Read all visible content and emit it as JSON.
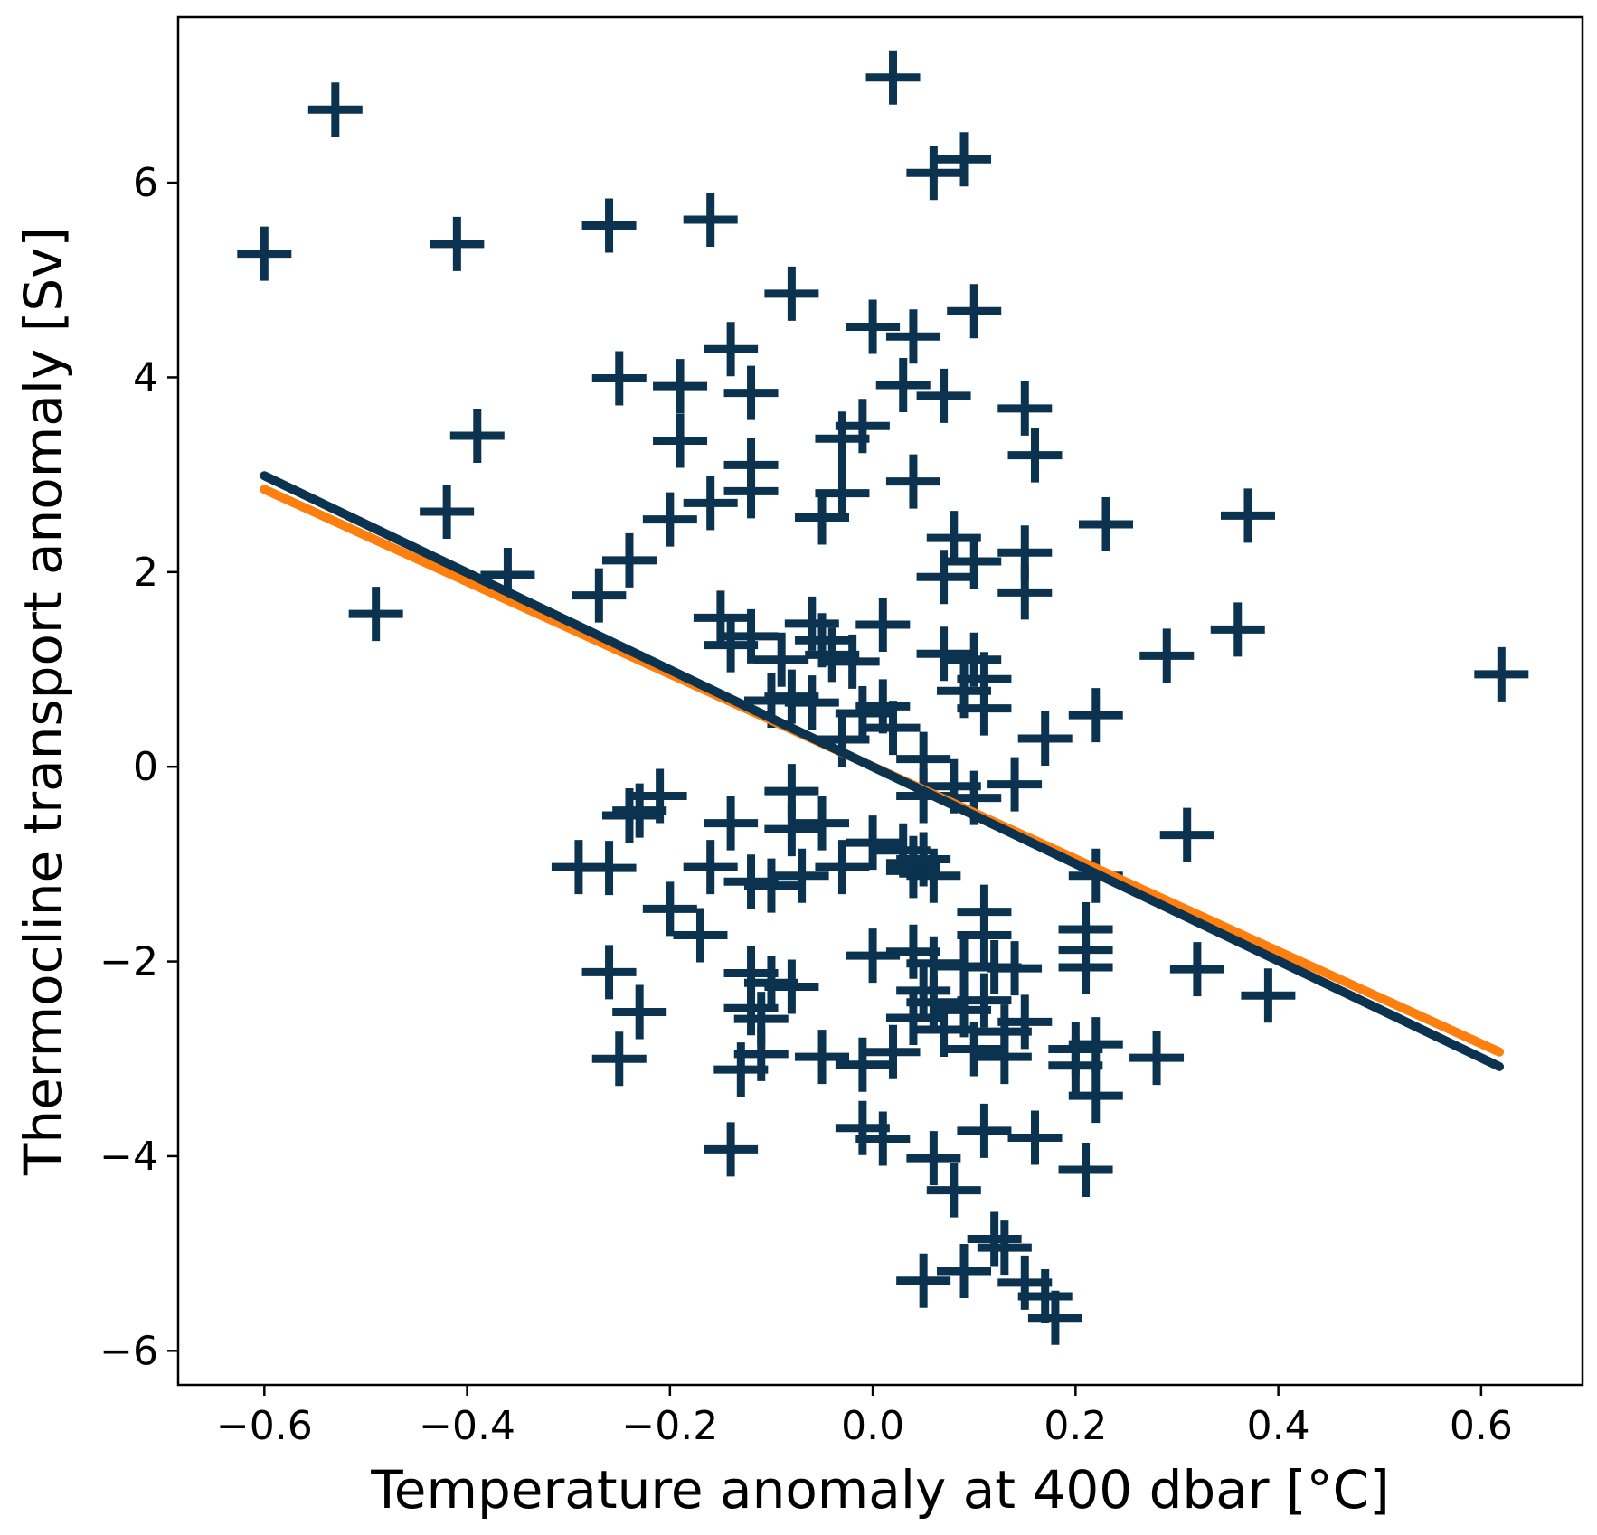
{
  "chart_data": {
    "type": "scatter",
    "title": "",
    "xlabel": "Temperature anomaly at 400 dbar [°C]",
    "ylabel": "Thermocline transport anomaly [Sv]",
    "xlim": [
      -0.685,
      0.7
    ],
    "ylim": [
      -6.35,
      7.7
    ],
    "x_ticks": [
      -0.6,
      -0.4,
      -0.2,
      0.0,
      0.2,
      0.4,
      0.6
    ],
    "x_tick_labels": [
      "−0.6",
      "−0.4",
      "−0.2",
      "0.0",
      "0.2",
      "0.4",
      "0.6"
    ],
    "y_ticks": [
      -6,
      -4,
      -2,
      0,
      2,
      4,
      6
    ],
    "y_tick_labels": [
      "−6",
      "−4",
      "−2",
      "0",
      "2",
      "4",
      "6"
    ],
    "grid": false,
    "marker": "+",
    "colors": {
      "points": "#0b3350",
      "fit_dark": "#0b3350",
      "fit_orange": "#ff7f0e",
      "frame": "#000000"
    },
    "fit_lines": [
      {
        "color": "#ff7f0e",
        "x": [
          -0.6,
          0.618
        ],
        "y": [
          2.85,
          -2.93
        ]
      },
      {
        "color": "#0b3350",
        "x": [
          -0.6,
          0.618
        ],
        "y": [
          2.99,
          -3.08
        ]
      }
    ],
    "points": [
      [
        -0.6,
        5.27
      ],
      [
        -0.53,
        6.75
      ],
      [
        -0.49,
        1.57
      ],
      [
        -0.41,
        5.37
      ],
      [
        -0.39,
        3.4
      ],
      [
        -0.42,
        2.62
      ],
      [
        -0.36,
        1.97
      ],
      [
        -0.26,
        5.56
      ],
      [
        -0.25,
        3.99
      ],
      [
        -0.24,
        2.12
      ],
      [
        -0.27,
        1.76
      ],
      [
        -0.19,
        3.91
      ],
      [
        -0.19,
        3.35
      ],
      [
        -0.2,
        2.54
      ],
      [
        -0.16,
        5.62
      ],
      [
        -0.16,
        2.71
      ],
      [
        -0.14,
        4.29
      ],
      [
        -0.12,
        3.84
      ],
      [
        -0.12,
        3.1
      ],
      [
        -0.12,
        2.83
      ],
      [
        -0.08,
        4.86
      ],
      [
        -0.03,
        3.37
      ],
      [
        -0.01,
        3.5
      ],
      [
        -0.03,
        2.81
      ],
      [
        -0.05,
        2.56
      ],
      [
        0.0,
        4.52
      ],
      [
        0.04,
        4.42
      ],
      [
        0.02,
        7.08
      ],
      [
        0.06,
        6.1
      ],
      [
        0.09,
        6.24
      ],
      [
        0.1,
        4.68
      ],
      [
        0.03,
        3.92
      ],
      [
        0.07,
        3.81
      ],
      [
        0.04,
        2.93
      ],
      [
        0.15,
        3.68
      ],
      [
        0.16,
        3.2
      ],
      [
        0.08,
        2.35
      ],
      [
        0.07,
        1.95
      ],
      [
        0.1,
        2.11
      ],
      [
        0.15,
        2.2
      ],
      [
        0.15,
        1.79
      ],
      [
        0.23,
        2.49
      ],
      [
        0.37,
        2.58
      ],
      [
        0.36,
        1.41
      ],
      [
        0.29,
        1.14
      ],
      [
        0.62,
        0.95
      ],
      [
        0.22,
        0.53
      ],
      [
        0.17,
        0.29
      ],
      [
        0.11,
        0.6
      ],
      [
        0.1,
        1.1
      ],
      [
        0.11,
        0.9
      ],
      [
        0.07,
        1.16
      ],
      [
        0.09,
        0.78
      ],
      [
        0.01,
        1.46
      ],
      [
        -0.15,
        1.53
      ],
      [
        -0.14,
        1.25
      ],
      [
        -0.12,
        1.34
      ],
      [
        -0.09,
        1.1
      ],
      [
        -0.06,
        1.47
      ],
      [
        -0.05,
        1.3
      ],
      [
        -0.04,
        1.15
      ],
      [
        -0.02,
        1.08
      ],
      [
        -0.1,
        0.68
      ],
      [
        -0.08,
        0.72
      ],
      [
        -0.06,
        0.66
      ],
      [
        -0.03,
        0.28
      ],
      [
        -0.01,
        0.55
      ],
      [
        0.01,
        0.62
      ],
      [
        0.02,
        0.4
      ],
      [
        0.05,
        0.08
      ],
      [
        -0.08,
        -0.25
      ],
      [
        -0.23,
        -0.45
      ],
      [
        -0.21,
        -0.3
      ],
      [
        -0.24,
        -0.5
      ],
      [
        -0.14,
        -0.58
      ],
      [
        -0.08,
        -0.64
      ],
      [
        -0.05,
        -0.58
      ],
      [
        0.0,
        -0.78
      ],
      [
        0.03,
        -0.86
      ],
      [
        0.04,
        -0.99
      ],
      [
        0.05,
        -0.3
      ],
      [
        0.08,
        -0.2
      ],
      [
        0.1,
        -0.32
      ],
      [
        0.14,
        -0.18
      ],
      [
        0.31,
        -0.7
      ],
      [
        -0.29,
        -1.03
      ],
      [
        -0.26,
        -1.04
      ],
      [
        -0.16,
        -1.03
      ],
      [
        -0.12,
        -1.18
      ],
      [
        -0.1,
        -1.22
      ],
      [
        -0.07,
        -1.12
      ],
      [
        -0.03,
        -1.03
      ],
      [
        0.04,
        -1.07
      ],
      [
        0.06,
        -1.12
      ],
      [
        0.05,
        -0.95
      ],
      [
        0.22,
        -1.12
      ],
      [
        -0.2,
        -1.46
      ],
      [
        -0.17,
        -1.73
      ],
      [
        0.11,
        -1.49
      ],
      [
        0.11,
        -1.73
      ],
      [
        0.21,
        -1.67
      ],
      [
        0.21,
        -1.88
      ],
      [
        -0.26,
        -2.11
      ],
      [
        -0.23,
        -2.52
      ],
      [
        -0.12,
        -2.12
      ],
      [
        -0.1,
        -2.22
      ],
      [
        -0.08,
        -2.26
      ],
      [
        -0.12,
        -2.48
      ],
      [
        -0.11,
        -2.59
      ],
      [
        0.0,
        -1.94
      ],
      [
        0.04,
        -1.9
      ],
      [
        0.06,
        -2.02
      ],
      [
        0.09,
        -2.05
      ],
      [
        0.12,
        -2.06
      ],
      [
        0.14,
        -2.07
      ],
      [
        0.21,
        -2.06
      ],
      [
        0.32,
        -2.08
      ],
      [
        0.39,
        -2.35
      ],
      [
        0.05,
        -2.3
      ],
      [
        0.06,
        -2.42
      ],
      [
        0.09,
        -2.5
      ],
      [
        0.11,
        -2.4
      ],
      [
        0.04,
        -2.58
      ],
      [
        0.07,
        -2.7
      ],
      [
        0.15,
        -2.62
      ],
      [
        0.13,
        -2.72
      ],
      [
        -0.25,
        -3.0
      ],
      [
        -0.13,
        -3.11
      ],
      [
        -0.11,
        -2.95
      ],
      [
        -0.05,
        -2.98
      ],
      [
        -0.01,
        -3.06
      ],
      [
        0.02,
        -2.93
      ],
      [
        0.1,
        -2.9
      ],
      [
        0.13,
        -2.98
      ],
      [
        0.2,
        -2.9
      ],
      [
        0.22,
        -2.85
      ],
      [
        0.28,
        -2.99
      ],
      [
        0.2,
        -3.07
      ],
      [
        0.22,
        -3.38
      ],
      [
        -0.14,
        -3.93
      ],
      [
        -0.01,
        -3.71
      ],
      [
        0.01,
        -3.82
      ],
      [
        0.06,
        -4.02
      ],
      [
        0.08,
        -4.35
      ],
      [
        0.11,
        -3.74
      ],
      [
        0.16,
        -3.81
      ],
      [
        0.21,
        -4.14
      ],
      [
        0.05,
        -5.28
      ],
      [
        0.09,
        -5.18
      ],
      [
        0.13,
        -4.94
      ],
      [
        0.15,
        -5.3
      ],
      [
        0.17,
        -5.44
      ],
      [
        0.18,
        -5.66
      ],
      [
        0.12,
        -4.85
      ]
    ]
  }
}
